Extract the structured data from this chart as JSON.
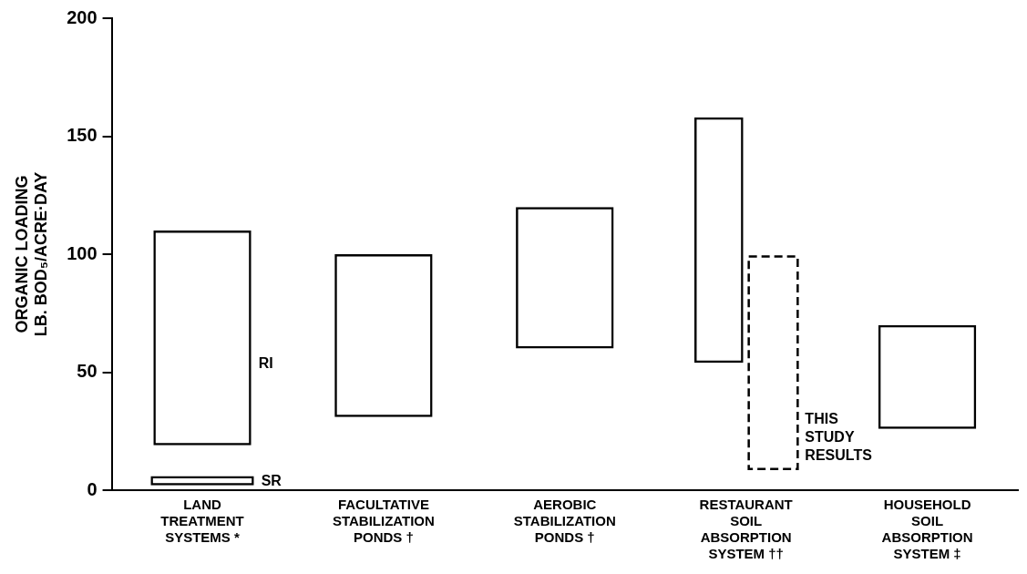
{
  "chart_data": {
    "type": "bar",
    "ylabel": "ORGANIC LOADING\nLB. BOD₅/ACRE·DAY",
    "categories": [
      "LAND\nTREATMENT\nSYSTEMS *",
      "FACULTATIVE\nSTABILIZATION\nPONDS †",
      "AEROBIC\nSTABILIZATION\nPONDS †",
      "RESTAURANT\nSOIL\nABSORPTION\nSYSTEM ††",
      "HOUSEHOLD\nSOIL\nABSORPTION\nSYSTEM ‡"
    ],
    "series": [
      {
        "name": "RI",
        "color": "#000000",
        "base": [
          19,
          null,
          null,
          null,
          null
        ],
        "values": [
          91,
          null,
          null,
          null,
          null
        ]
      },
      {
        "color": "#000000",
        "base": [
          null,
          31,
          60,
          54,
          26
        ],
        "values": [
          null,
          69,
          60,
          104,
          44
        ]
      },
      {
        "name": "SR",
        "color": "#000000",
        "base": [
          2,
          null,
          null,
          null,
          null
        ],
        "values": [
          4,
          null,
          null,
          null,
          null
        ]
      },
      {
        "name": "THIS\nSTUDY\nRESULTS",
        "color": "#000000",
        "line_style": "dashed",
        "base": [
          null,
          null,
          null,
          9,
          null
        ],
        "values": [
          null,
          null,
          null,
          90,
          null
        ]
      }
    ],
    "ylim": [
      0,
      200
    ],
    "yticks": [
      0,
      50,
      100,
      150,
      200
    ],
    "grid": false,
    "legend": false
  }
}
